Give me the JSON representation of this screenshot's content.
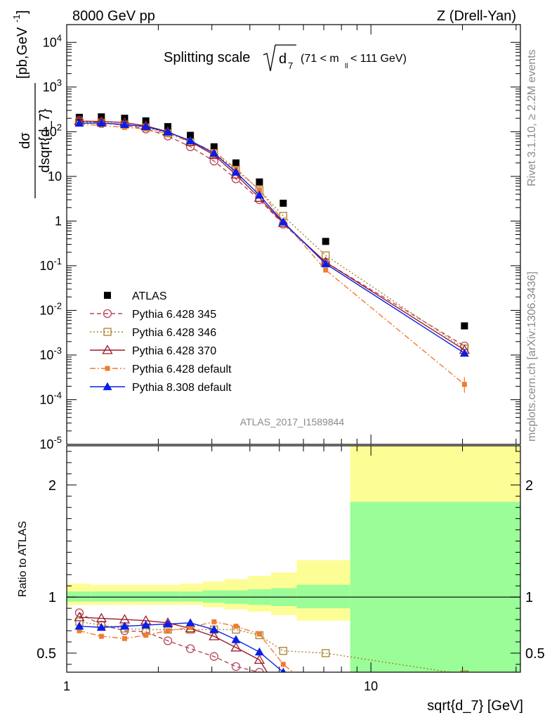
{
  "header": {
    "left": "8000 GeV pp",
    "right": "Z (Drell-Yan)"
  },
  "plot_title": {
    "main": "Splitting scale",
    "root_sub": "d",
    "root_idx": "7",
    "cut": "(71 < m",
    "cut_sub": "ll",
    "cut_end": " < 111 GeV)"
  },
  "ylabel_main": {
    "num": "dσ",
    "den": "dsqrt{d_7}",
    "units": "[pb,GeV",
    "units_exp": "-1",
    "units_end": "]"
  },
  "ylabel_ratio": "Ratio to ATLAS",
  "xlabel": "sqrt{d_7} [GeV]",
  "analysis_id": "ATLAS_2017_I1589844",
  "side_label_top": "Rivet 3.1.10, ≥ 2.2M events",
  "side_label_bottom": "mcplots.cern.ch [arXiv:1306.3436]",
  "colors": {
    "atlas": "#000000",
    "py345": "#b5475a",
    "py346": "#a8812c",
    "py370": "#9b1b2a",
    "pydef": "#f27b2d",
    "py8": "#0a1ee8",
    "band_inner": "#9afd98",
    "band_outer": "#fdfd96"
  },
  "chart_data": [
    {
      "type": "scatter",
      "panel": "main",
      "x_scale": "log",
      "y_scale": "log",
      "xlim": [
        1,
        31
      ],
      "ylim": [
        1e-05,
        25000
      ],
      "y_ticks": [
        "10^{4}",
        "10^{3}",
        "10^{2}",
        "10",
        "1",
        "10^{-1}",
        "10^{-2}",
        "10^{-3}",
        "10^{-4}",
        "10^{-5}"
      ],
      "x_ticks": [
        "1",
        "10"
      ],
      "legend_position": "lower-left",
      "x": [
        1.1,
        1.3,
        1.55,
        1.82,
        2.15,
        2.55,
        3.05,
        3.6,
        4.3,
        5.15,
        7.1,
        20.3
      ],
      "series": [
        {
          "name": "ATLAS",
          "marker": "square",
          "values": [
            210,
            215,
            200,
            175,
            130,
            83,
            46,
            20,
            7.5,
            2.5,
            0.35,
            0.0045
          ]
        },
        {
          "name": "Pythia 6.428 345",
          "marker": "circle-open",
          "dash": "dashed",
          "values": [
            180,
            160,
            140,
            115,
            80,
            46,
            22,
            8.8,
            3.0,
            0.85,
            0.12,
            0.0016
          ]
        },
        {
          "name": "Pythia 6.428 346",
          "marker": "square-open",
          "dash": "dotted",
          "values": [
            165,
            160,
            145,
            125,
            92,
            58,
            33,
            14,
            5.0,
            1.3,
            0.17,
            0.0014
          ]
        },
        {
          "name": "Pythia 6.428 370",
          "marker": "triangle-open",
          "dash": "solid",
          "values": [
            172,
            170,
            160,
            135,
            100,
            60,
            30,
            11,
            3.3,
            0.9,
            0.12,
            0.0013
          ]
        },
        {
          "name": "Pythia 6.428 default",
          "marker": "square-small",
          "dash": "dashdot",
          "values": [
            148,
            138,
            125,
            115,
            90,
            60,
            36,
            15,
            5.0,
            1.0,
            0.08,
            0.00022
          ]
        },
        {
          "name": "Pythia 8.308 default",
          "marker": "triangle",
          "dash": "solid",
          "values": [
            155,
            155,
            145,
            130,
            98,
            63,
            33,
            12.5,
            3.8,
            0.95,
            0.11,
            0.0011
          ]
        }
      ]
    },
    {
      "type": "line",
      "panel": "ratio",
      "x_scale": "log",
      "xlim": [
        1,
        31
      ],
      "ylim": [
        0.33,
        2.35
      ],
      "y_ticks": [
        "0.5",
        "1",
        "2"
      ],
      "x": [
        1.1,
        1.3,
        1.55,
        1.82,
        2.15,
        2.55,
        3.05,
        3.6,
        4.3,
        5.15,
        7.1,
        20.3
      ],
      "bands": {
        "edges": [
          1,
          1.2,
          1.42,
          1.68,
          1.98,
          2.35,
          2.8,
          3.3,
          3.95,
          4.7,
          5.7,
          8.55,
          31
        ],
        "inner_low": [
          0.96,
          0.96,
          0.96,
          0.96,
          0.96,
          0.96,
          0.95,
          0.94,
          0.93,
          0.92,
          0.9,
          0.3
        ],
        "inner_high": [
          1.05,
          1.05,
          1.05,
          1.05,
          1.05,
          1.05,
          1.06,
          1.06,
          1.07,
          1.08,
          1.11,
          1.85
        ],
        "outer_low": [
          0.93,
          0.93,
          0.93,
          0.93,
          0.93,
          0.93,
          0.91,
          0.89,
          0.87,
          0.84,
          0.79,
          0.3
        ],
        "outer_high": [
          1.12,
          1.11,
          1.11,
          1.11,
          1.11,
          1.12,
          1.14,
          1.16,
          1.19,
          1.22,
          1.33,
          2.35
        ]
      },
      "series": [
        {
          "name": "Pythia 6.428 345",
          "values": [
            0.86,
            0.75,
            0.7,
            0.69,
            0.61,
            0.54,
            0.47,
            0.38,
            0.33,
            null,
            null,
            null
          ]
        },
        {
          "name": "Pythia 6.428 346",
          "values": [
            0.78,
            0.75,
            0.72,
            0.71,
            0.71,
            0.71,
            0.71,
            0.71,
            0.66,
            0.52,
            0.5,
            0.31
          ]
        },
        {
          "name": "Pythia 6.428 370",
          "values": [
            0.82,
            0.81,
            0.8,
            0.79,
            0.77,
            0.72,
            0.65,
            0.55,
            0.44,
            null,
            null,
            null
          ]
        },
        {
          "name": "Pythia 6.428 default",
          "values": [
            0.7,
            0.65,
            0.63,
            0.66,
            0.7,
            0.73,
            0.78,
            0.74,
            0.67,
            0.4,
            null,
            null
          ]
        },
        {
          "name": "Pythia 8.308 default",
          "values": [
            0.74,
            0.73,
            0.74,
            0.75,
            0.76,
            0.77,
            0.71,
            0.62,
            0.51,
            0.33,
            null,
            null
          ]
        }
      ]
    }
  ]
}
